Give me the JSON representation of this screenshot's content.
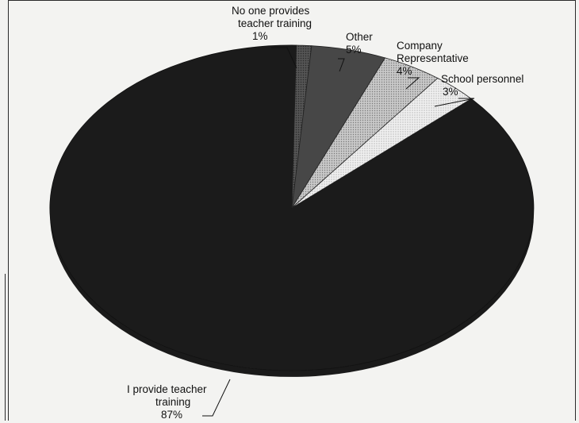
{
  "chart_data": {
    "type": "pie",
    "title": "",
    "slices": [
      {
        "label": "I provide teacher training",
        "value": 87,
        "value_label": "87%",
        "color": "#1b1b1b"
      },
      {
        "label": "No one provides teacher training",
        "value": 1,
        "value_label": "1%",
        "color": "#6a6a6a"
      },
      {
        "label": "Other",
        "value": 5,
        "value_label": "5%",
        "color": "#4a4a4a"
      },
      {
        "label": "Company Representative",
        "value": 4,
        "value_label": "4%",
        "color": "#bdbdbd"
      },
      {
        "label": "School personnel",
        "value": 3,
        "value_label": "3%",
        "color": "#ebebeb"
      }
    ],
    "legend": "none",
    "style": "3d-pie"
  }
}
